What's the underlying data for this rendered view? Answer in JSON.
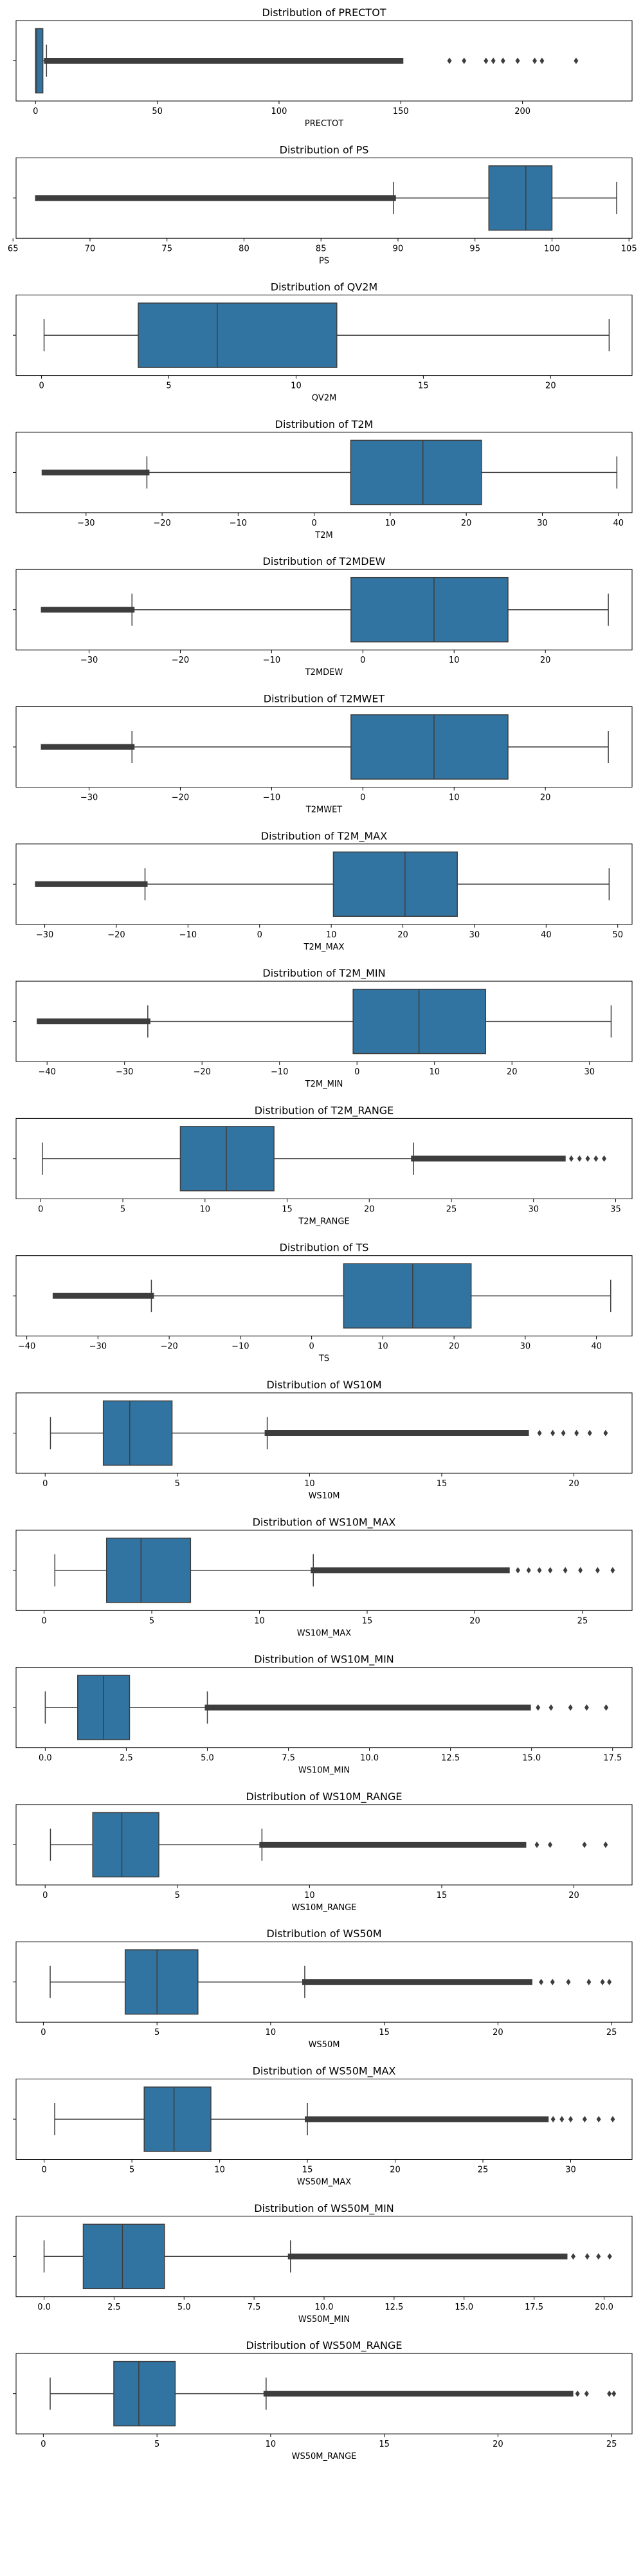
{
  "chart_data": [
    {
      "type": "box",
      "title": "Distribution of PRECTOT",
      "xlabel": "PRECTOT",
      "xlim": [
        -8,
        245
      ],
      "ticks": [
        0,
        50,
        100,
        150,
        200
      ],
      "tick_labels": [
        "0",
        "50",
        "100",
        "150",
        "200"
      ],
      "whisker_low": 0,
      "q1": 0,
      "median": 0.5,
      "q3": 3.0,
      "whisker_high": 4.5,
      "outliers_dense": [
        [
          4.5,
          150
        ]
      ],
      "outliers_sparse": [
        170,
        176,
        185,
        188,
        192,
        198,
        205,
        208,
        222
      ],
      "box_color": "#3274a1"
    },
    {
      "type": "box",
      "title": "Distribution of PS",
      "xlabel": "PS",
      "xlim": [
        65.2,
        105.2
      ],
      "ticks": [
        65,
        70,
        75,
        80,
        85,
        90,
        95,
        100,
        105
      ],
      "tick_labels": [
        "65",
        "70",
        "75",
        "80",
        "85",
        "90",
        "95",
        "100",
        "105"
      ],
      "whisker_low": 89.7,
      "q1": 95.9,
      "median": 98.3,
      "q3": 100.0,
      "whisker_high": 104.2,
      "outliers_dense": [
        [
          66.6,
          89.7
        ]
      ],
      "outliers_sparse": [],
      "box_color": "#3274a1"
    },
    {
      "type": "box",
      "title": "Distribution of QV2M",
      "xlabel": "QV2M",
      "xlim": [
        -1.0,
        23.2
      ],
      "ticks": [
        0,
        5,
        10,
        15,
        20
      ],
      "tick_labels": [
        "0",
        "5",
        "10",
        "15",
        "20"
      ],
      "whisker_low": 0.1,
      "q1": 3.8,
      "median": 6.9,
      "q3": 11.6,
      "whisker_high": 22.3,
      "outliers_dense": [],
      "outliers_sparse": [],
      "box_color": "#3274a1"
    },
    {
      "type": "box",
      "title": "Distribution of T2M",
      "xlabel": "T2M",
      "xlim": [
        -39.2,
        41.8
      ],
      "ticks": [
        -30,
        -20,
        -10,
        0,
        10,
        20,
        30,
        40
      ],
      "tick_labels": [
        "−30",
        "−20",
        "−10",
        "0",
        "10",
        "20",
        "30",
        "40"
      ],
      "whisker_low": -22.0,
      "q1": 4.8,
      "median": 14.3,
      "q3": 22.0,
      "whisker_high": 39.8,
      "outliers_dense": [
        [
          -35.5,
          -22.0
        ]
      ],
      "outliers_sparse": [],
      "box_color": "#3274a1"
    },
    {
      "type": "box",
      "title": "Distribution of T2MDEW",
      "xlabel": "T2MDEW",
      "xlim": [
        -38.0,
        29.5
      ],
      "ticks": [
        -30,
        -20,
        -10,
        0,
        10,
        20
      ],
      "tick_labels": [
        "−30",
        "−20",
        "−10",
        "0",
        "10",
        "20"
      ],
      "whisker_low": -25.3,
      "q1": -1.3,
      "median": 7.8,
      "q3": 15.9,
      "whisker_high": 26.9,
      "outliers_dense": [
        [
          -35.0,
          -25.3
        ]
      ],
      "outliers_sparse": [],
      "box_color": "#3274a1"
    },
    {
      "type": "box",
      "title": "Distribution of T2MWET",
      "xlabel": "T2MWET",
      "xlim": [
        -38.0,
        29.5
      ],
      "ticks": [
        -30,
        -20,
        -10,
        0,
        10,
        20
      ],
      "tick_labels": [
        "−30",
        "−20",
        "−10",
        "0",
        "10",
        "20"
      ],
      "whisker_low": -25.3,
      "q1": -1.3,
      "median": 7.8,
      "q3": 15.9,
      "whisker_high": 26.9,
      "outliers_dense": [
        [
          -35.0,
          -25.3
        ]
      ],
      "outliers_sparse": [],
      "box_color": "#3274a1"
    },
    {
      "type": "box",
      "title": "Distribution of T2M_MAX",
      "xlabel": "T2M_MAX",
      "xlim": [
        -34.0,
        52.0
      ],
      "ticks": [
        -30,
        -20,
        -10,
        0,
        10,
        20,
        30,
        40,
        50
      ],
      "tick_labels": [
        "−30",
        "−20",
        "−10",
        "0",
        "10",
        "20",
        "30",
        "40",
        "50"
      ],
      "whisker_low": -16.0,
      "q1": 10.3,
      "median": 20.3,
      "q3": 27.6,
      "whisker_high": 48.8,
      "outliers_dense": [
        [
          -31.0,
          -16.0
        ]
      ],
      "outliers_sparse": [],
      "box_color": "#3274a1"
    },
    {
      "type": "box",
      "title": "Distribution of T2M_MIN",
      "xlabel": "T2M_MIN",
      "xlim": [
        -44.0,
        35.5
      ],
      "ticks": [
        -40,
        -30,
        -20,
        -10,
        0,
        10,
        20,
        30
      ],
      "tick_labels": [
        "−40",
        "−30",
        "−20",
        "−10",
        "0",
        "10",
        "20",
        "30"
      ],
      "whisker_low": -27.0,
      "q1": -0.5,
      "median": 8.0,
      "q3": 16.6,
      "whisker_high": 32.8,
      "outliers_dense": [
        [
          -41.0,
          -27.0
        ]
      ],
      "outliers_sparse": [],
      "box_color": "#3274a1"
    },
    {
      "type": "box",
      "title": "Distribution of T2M_RANGE",
      "xlabel": "T2M_RANGE",
      "xlim": [
        -1.5,
        36.0
      ],
      "ticks": [
        0,
        5,
        10,
        15,
        20,
        25,
        30,
        35
      ],
      "tick_labels": [
        "0",
        "5",
        "10",
        "15",
        "20",
        "25",
        "30",
        "35"
      ],
      "whisker_low": 0.1,
      "q1": 8.5,
      "median": 11.3,
      "q3": 14.2,
      "whisker_high": 22.7,
      "outliers_dense": [
        [
          22.7,
          31.8
        ]
      ],
      "outliers_sparse": [
        32.3,
        32.8,
        33.3,
        33.8,
        34.3
      ],
      "box_color": "#3274a1"
    },
    {
      "type": "box",
      "title": "Distribution of TS",
      "xlabel": "TS",
      "xlim": [
        -41.5,
        45.0
      ],
      "ticks": [
        -40,
        -30,
        -20,
        -10,
        0,
        10,
        20,
        30,
        40
      ],
      "tick_labels": [
        "−40",
        "−30",
        "−20",
        "−10",
        "0",
        "10",
        "20",
        "30",
        "40"
      ],
      "whisker_low": -22.5,
      "q1": 4.5,
      "median": 14.2,
      "q3": 22.4,
      "whisker_high": 42.0,
      "outliers_dense": [
        [
          -36.0,
          -22.5
        ]
      ],
      "outliers_sparse": [],
      "box_color": "#3274a1"
    },
    {
      "type": "box",
      "title": "Distribution of WS10M",
      "xlabel": "WS10M",
      "xlim": [
        -1.1,
        22.2
      ],
      "ticks": [
        0,
        5,
        10,
        15,
        20
      ],
      "tick_labels": [
        "0",
        "5",
        "10",
        "15",
        "20"
      ],
      "whisker_low": 0.2,
      "q1": 2.2,
      "median": 3.2,
      "q3": 4.8,
      "whisker_high": 8.4,
      "outliers_dense": [
        [
          8.4,
          18.2
        ]
      ],
      "outliers_sparse": [
        18.7,
        19.2,
        19.6,
        20.1,
        20.6,
        21.2
      ],
      "box_color": "#3274a1"
    },
    {
      "type": "box",
      "title": "Distribution of WS10M_MAX",
      "xlabel": "WS10M_MAX",
      "xlim": [
        -1.3,
        27.3
      ],
      "ticks": [
        0,
        5,
        10,
        15,
        20,
        25
      ],
      "tick_labels": [
        "0",
        "5",
        "10",
        "15",
        "20",
        "25"
      ],
      "whisker_low": 0.5,
      "q1": 2.9,
      "median": 4.5,
      "q3": 6.8,
      "whisker_high": 12.5,
      "outliers_dense": [
        [
          12.5,
          21.5
        ]
      ],
      "outliers_sparse": [
        22.0,
        22.5,
        23.0,
        23.5,
        24.2,
        24.9,
        25.7,
        26.4
      ],
      "box_color": "#3274a1"
    },
    {
      "type": "box",
      "title": "Distribution of WS10M_MIN",
      "xlabel": "WS10M_MIN",
      "xlim": [
        -0.9,
        18.1
      ],
      "ticks": [
        0,
        2.5,
        5,
        7.5,
        10,
        12.5,
        15,
        17.5
      ],
      "tick_labels": [
        "0.0",
        "2.5",
        "5.0",
        "7.5",
        "10.0",
        "12.5",
        "15.0",
        "17.5"
      ],
      "whisker_low": 0.0,
      "q1": 1.0,
      "median": 1.8,
      "q3": 2.6,
      "whisker_high": 5.0,
      "outliers_dense": [
        [
          5.0,
          14.9
        ]
      ],
      "outliers_sparse": [
        15.2,
        15.6,
        16.2,
        16.7,
        17.3
      ],
      "box_color": "#3274a1"
    },
    {
      "type": "box",
      "title": "Distribution of WS10M_RANGE",
      "xlabel": "WS10M_RANGE",
      "xlim": [
        -1.1,
        22.2
      ],
      "ticks": [
        0,
        5,
        10,
        15,
        20
      ],
      "tick_labels": [
        "0",
        "5",
        "10",
        "15",
        "20"
      ],
      "whisker_low": 0.2,
      "q1": 1.8,
      "median": 2.9,
      "q3": 4.3,
      "whisker_high": 8.2,
      "outliers_dense": [
        [
          8.2,
          18.1
        ]
      ],
      "outliers_sparse": [
        18.6,
        19.1,
        20.4,
        21.2
      ],
      "box_color": "#3274a1"
    },
    {
      "type": "box",
      "title": "Distribution of WS50M",
      "xlabel": "WS50M",
      "xlim": [
        -1.2,
        25.9
      ],
      "ticks": [
        0,
        5,
        10,
        15,
        20,
        25
      ],
      "tick_labels": [
        "0",
        "5",
        "10",
        "15",
        "20",
        "25"
      ],
      "whisker_low": 0.3,
      "q1": 3.6,
      "median": 5.0,
      "q3": 6.8,
      "whisker_high": 11.5,
      "outliers_dense": [
        [
          11.5,
          21.4
        ]
      ],
      "outliers_sparse": [
        21.9,
        22.4,
        23.1,
        24.0,
        24.6,
        24.9
      ],
      "box_color": "#3274a1"
    },
    {
      "type": "box",
      "title": "Distribution of WS50M_MAX",
      "xlabel": "WS50M_MAX",
      "xlim": [
        -1.6,
        33.5
      ],
      "ticks": [
        0,
        5,
        10,
        15,
        20,
        25,
        30
      ],
      "tick_labels": [
        "0",
        "5",
        "10",
        "15",
        "20",
        "25",
        "30"
      ],
      "whisker_low": 0.6,
      "q1": 5.7,
      "median": 7.4,
      "q3": 9.5,
      "whisker_high": 15.0,
      "outliers_dense": [
        [
          15.0,
          28.6
        ]
      ],
      "outliers_sparse": [
        29.0,
        29.5,
        30.0,
        30.8,
        31.6,
        32.4
      ],
      "box_color": "#3274a1"
    },
    {
      "type": "box",
      "title": "Distribution of WS50M_MIN",
      "xlabel": "WS50M_MIN",
      "xlim": [
        -1.0,
        21.0
      ],
      "ticks": [
        0,
        2.5,
        5,
        7.5,
        10,
        12.5,
        15,
        17.5,
        20
      ],
      "tick_labels": [
        "0.0",
        "2.5",
        "5.0",
        "7.5",
        "10.0",
        "12.5",
        "15.0",
        "17.5",
        "20.0"
      ],
      "whisker_low": 0.0,
      "q1": 1.4,
      "median": 2.8,
      "q3": 4.3,
      "whisker_high": 8.8,
      "outliers_dense": [
        [
          8.8,
          18.6
        ]
      ],
      "outliers_sparse": [
        18.9,
        19.4,
        19.8,
        20.2
      ],
      "box_color": "#3274a1"
    },
    {
      "type": "box",
      "title": "Distribution of WS50M_RANGE",
      "xlabel": "WS50M_RANGE",
      "xlim": [
        -1.2,
        25.9
      ],
      "ticks": [
        0,
        5,
        10,
        15,
        20,
        25
      ],
      "tick_labels": [
        "0",
        "5",
        "10",
        "15",
        "20",
        "25"
      ],
      "whisker_low": 0.3,
      "q1": 3.1,
      "median": 4.2,
      "q3": 5.8,
      "whisker_high": 9.8,
      "outliers_dense": [
        [
          9.8,
          23.2
        ]
      ],
      "outliers_sparse": [
        23.5,
        23.9,
        24.9,
        25.1
      ],
      "box_color": "#3274a1"
    }
  ]
}
